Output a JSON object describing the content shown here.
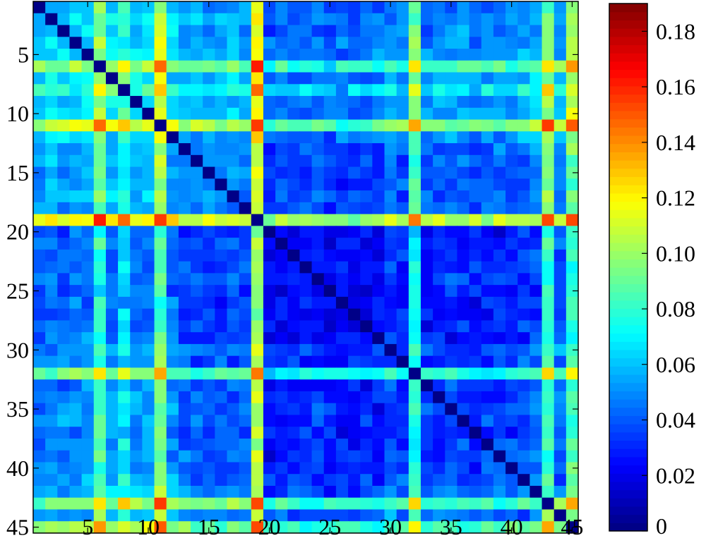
{
  "chart_data": {
    "type": "heatmap",
    "title": "",
    "xlabel": "",
    "ylabel": "",
    "rows": 45,
    "cols": 45,
    "x_ticks": [
      5,
      10,
      15,
      20,
      25,
      30,
      35,
      40,
      45
    ],
    "x_tick_labels": [
      "5",
      "10",
      "15",
      "20",
      "25",
      "30",
      "35",
      "40",
      "45"
    ],
    "y_ticks": [
      5,
      10,
      15,
      20,
      25,
      30,
      35,
      40,
      45
    ],
    "y_tick_labels": [
      "5",
      "10",
      "15",
      "20",
      "25",
      "30",
      "35",
      "40",
      "45"
    ],
    "colorbar": {
      "min": 0,
      "max": 0.19,
      "ticks": [
        0,
        0.02,
        0.04,
        0.06,
        0.08,
        0.1,
        0.12,
        0.14,
        0.16,
        0.18
      ],
      "tick_labels": [
        "0",
        "0.02",
        "0.04",
        "0.06",
        "0.08",
        "0.10",
        "0.12",
        "0.14",
        "0.16",
        "0.18"
      ],
      "colormap": "jet",
      "levels": 64
    },
    "structure": {
      "description_values": "Symmetric matrix with zero diagonal; estimated per-index base levels; cell value ~ base_i + base_j",
      "row_base": [
        0.03,
        0.035,
        0.03,
        0.03,
        0.035,
        0.06,
        0.035,
        0.05,
        0.035,
        0.03,
        0.085,
        0.03,
        0.035,
        0.035,
        0.03,
        0.03,
        0.035,
        0.03,
        0.095,
        0.01,
        0.015,
        0.015,
        0.015,
        0.02,
        0.01,
        0.01,
        0.01,
        0.01,
        0.015,
        0.025,
        0.02,
        0.06,
        0.015,
        0.02,
        0.02,
        0.02,
        0.015,
        0.02,
        0.02,
        0.02,
        0.02,
        0.03,
        0.075,
        0.03,
        0.075
      ],
      "col_base": [
        0.025,
        0.03,
        0.03,
        0.035,
        0.03,
        0.07,
        0.035,
        0.05,
        0.03,
        0.04,
        0.065,
        0.035,
        0.015,
        0.015,
        0.015,
        0.015,
        0.015,
        0.015,
        0.075,
        0.01,
        0.01,
        0.01,
        0.01,
        0.01,
        0.01,
        0.01,
        0.01,
        0.01,
        0.01,
        0.02,
        0.01,
        0.06,
        0.015,
        0.015,
        0.015,
        0.015,
        0.015,
        0.015,
        0.015,
        0.015,
        0.02,
        0.02,
        0.06,
        0.02,
        0.06
      ]
    }
  }
}
